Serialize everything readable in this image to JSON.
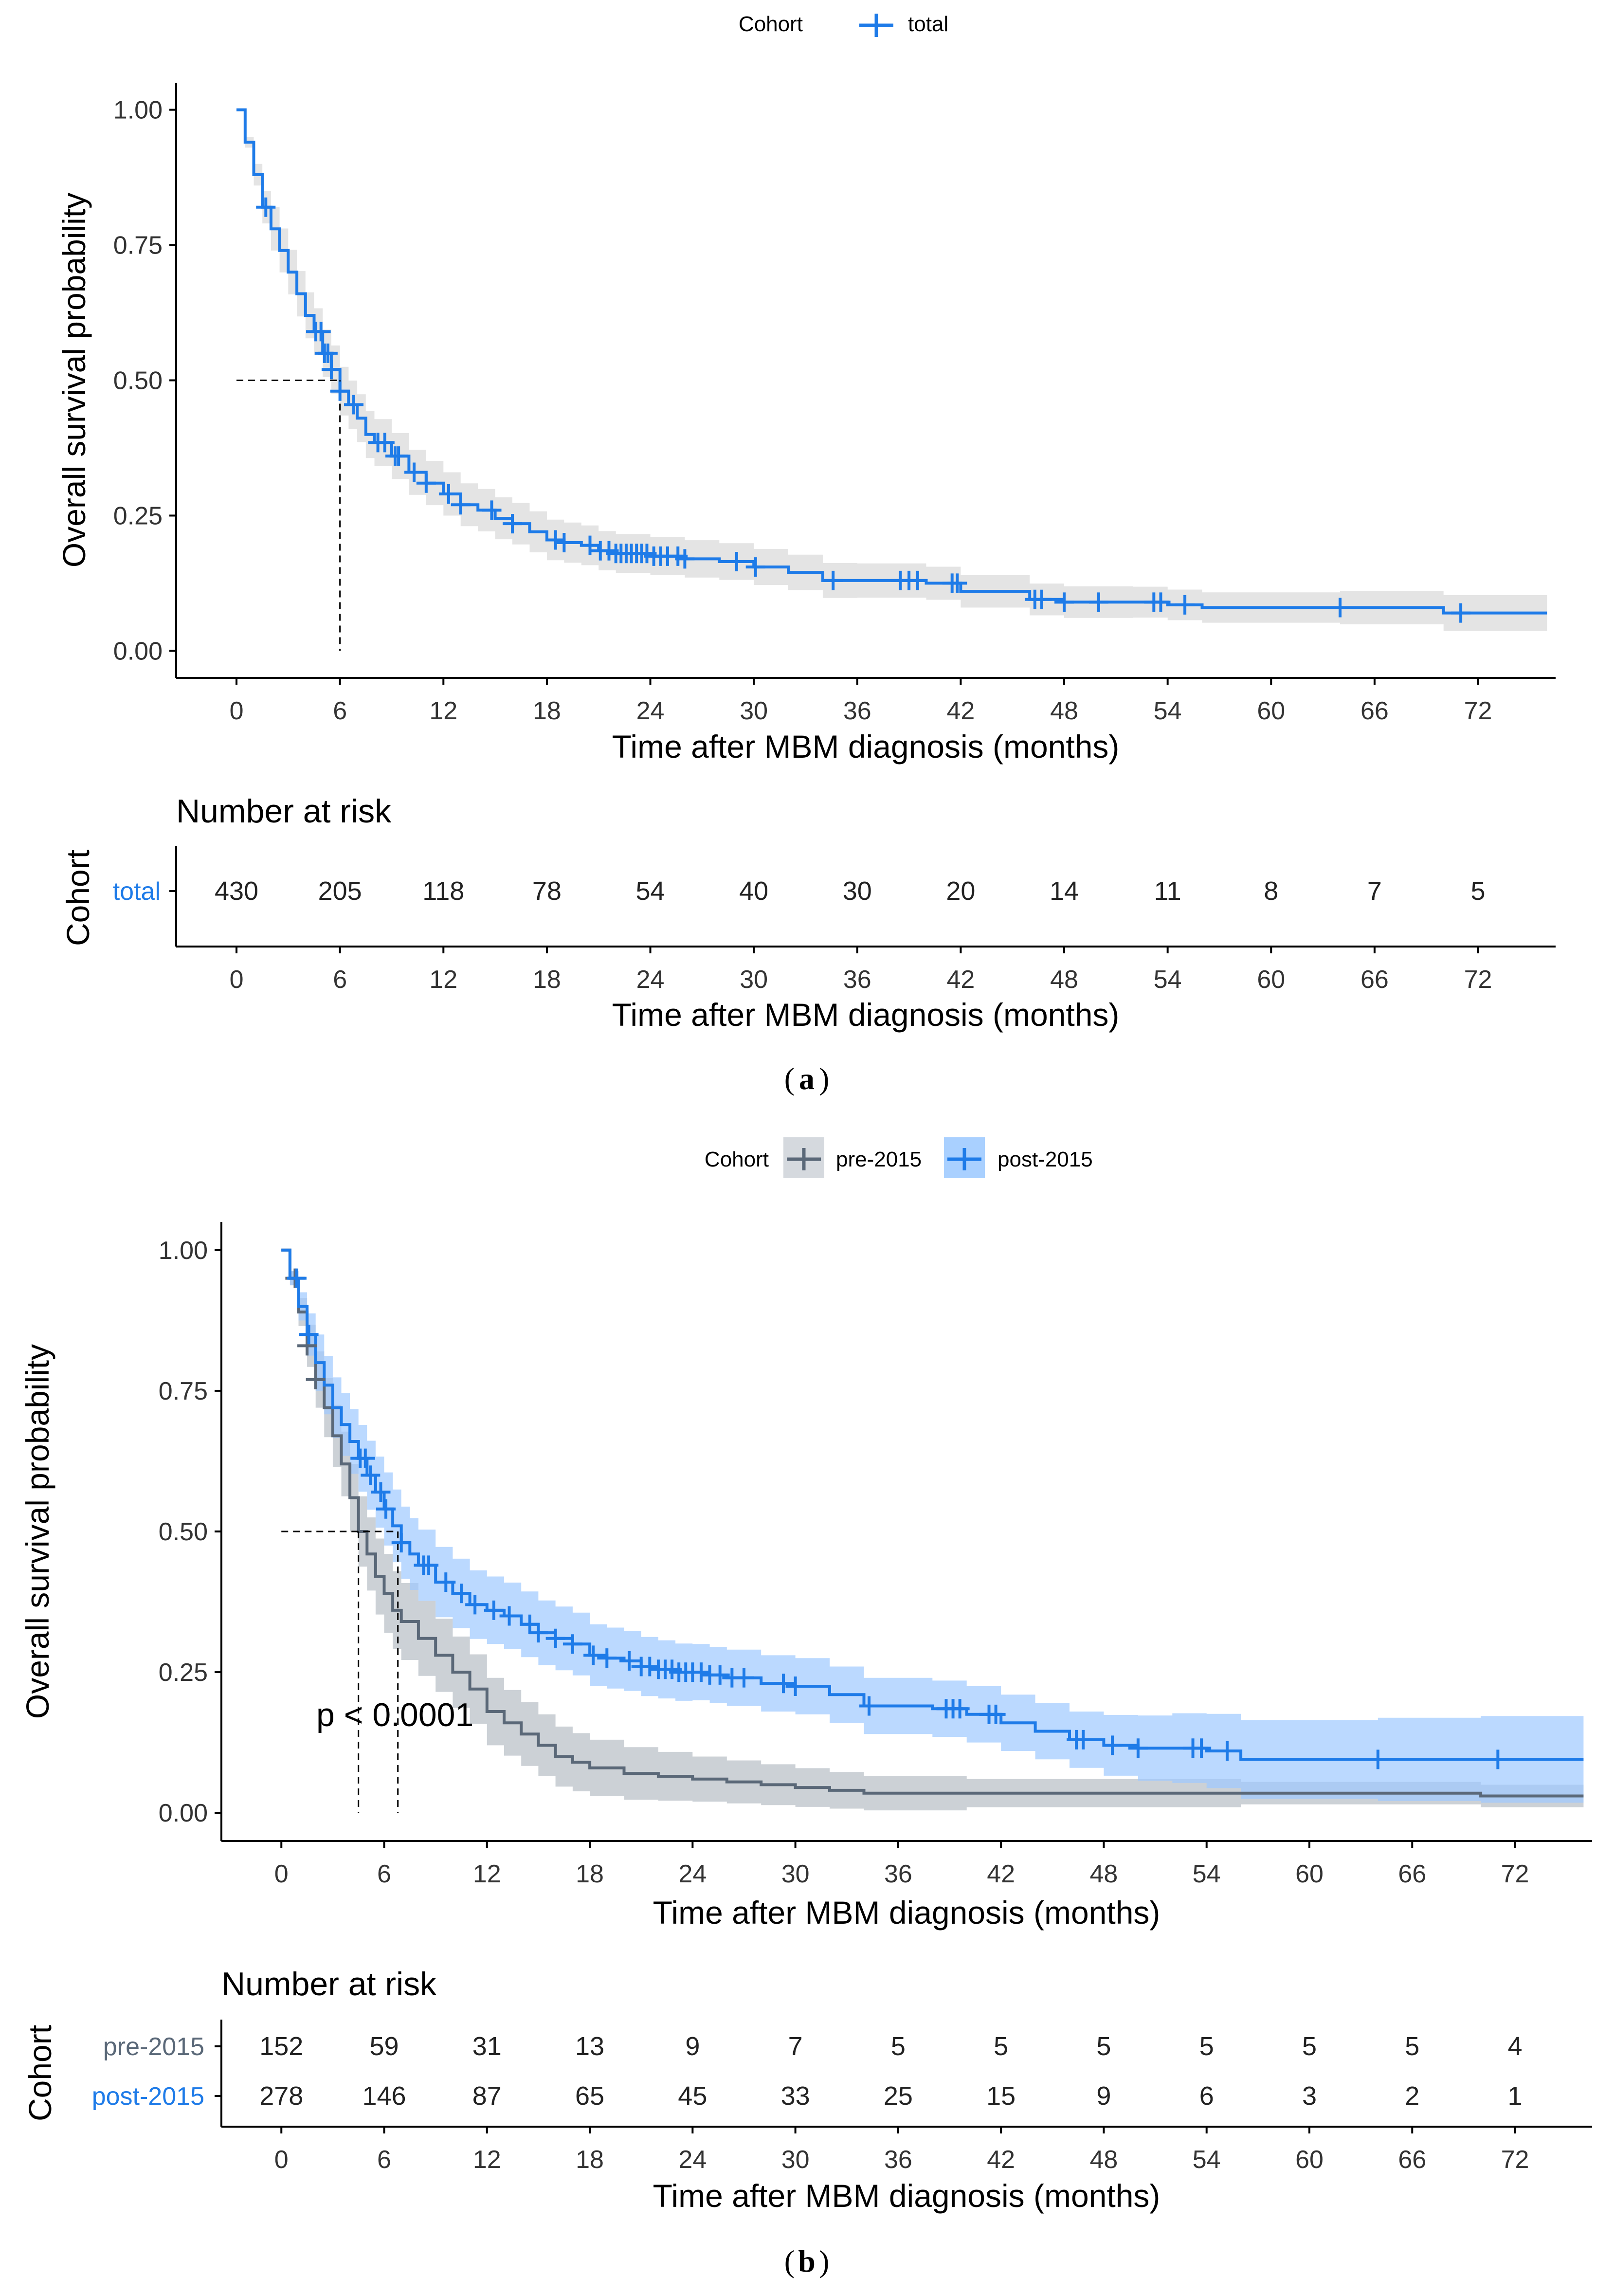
{
  "chart_data": [
    {
      "type": "line",
      "panel_label": "a",
      "legend": {
        "title": "Cohort",
        "entries": [
          "total"
        ],
        "placement": "top-center"
      },
      "xlabel": "Time after MBM diagnosis (months)",
      "ylabel": "Overall survival probability",
      "x_ticks": [
        0,
        6,
        12,
        18,
        24,
        30,
        36,
        42,
        48,
        54,
        60,
        66,
        72
      ],
      "y_ticks": [
        "0.00",
        "0.25",
        "0.50",
        "0.75",
        "1.00"
      ],
      "xlim": [
        -3.5,
        76.5
      ],
      "ylim": [
        -0.05,
        1.05
      ],
      "median_survival": 6,
      "series": [
        {
          "name": "total",
          "color": "#1e7be8",
          "band_color": "#e4e4e4",
          "band_opacity": 1,
          "curve": [
            [
              0,
              1.0
            ],
            [
              0.5,
              0.94
            ],
            [
              1,
              0.88
            ],
            [
              1.5,
              0.82
            ],
            [
              2,
              0.78
            ],
            [
              2.5,
              0.74
            ],
            [
              3,
              0.7
            ],
            [
              3.5,
              0.66
            ],
            [
              4,
              0.62
            ],
            [
              4.5,
              0.59
            ],
            [
              5,
              0.55
            ],
            [
              5.5,
              0.52
            ],
            [
              6,
              0.48
            ],
            [
              6.5,
              0.455
            ],
            [
              7,
              0.43
            ],
            [
              7.5,
              0.4
            ],
            [
              8,
              0.385
            ],
            [
              9,
              0.36
            ],
            [
              10,
              0.33
            ],
            [
              11,
              0.31
            ],
            [
              12,
              0.29
            ],
            [
              13,
              0.27
            ],
            [
              14,
              0.26
            ],
            [
              15,
              0.245
            ],
            [
              16,
              0.235
            ],
            [
              17,
              0.22
            ],
            [
              18,
              0.205
            ],
            [
              19,
              0.2
            ],
            [
              20,
              0.195
            ],
            [
              21,
              0.185
            ],
            [
              22,
              0.18
            ],
            [
              24,
              0.175
            ],
            [
              26,
              0.17
            ],
            [
              28,
              0.165
            ],
            [
              30,
              0.155
            ],
            [
              32,
              0.145
            ],
            [
              34,
              0.13
            ],
            [
              36,
              0.13
            ],
            [
              40,
              0.125
            ],
            [
              42,
              0.11
            ],
            [
              46,
              0.095
            ],
            [
              48,
              0.09
            ],
            [
              52,
              0.09
            ],
            [
              54,
              0.085
            ],
            [
              56,
              0.08
            ],
            [
              64,
              0.08
            ],
            [
              70,
              0.07
            ],
            [
              76,
              0.07
            ]
          ],
          "ci_width": [
            [
              0,
              0.0
            ],
            [
              2,
              0.04
            ],
            [
              6,
              0.045
            ],
            [
              12,
              0.04
            ],
            [
              24,
              0.035
            ],
            [
              42,
              0.03
            ],
            [
              56,
              0.028
            ],
            [
              76,
              0.035
            ]
          ],
          "censors": [
            1.7,
            4.6,
            4.9,
            5.1,
            5.3,
            5.5,
            6.0,
            6.8,
            8.2,
            8.6,
            9.2,
            9.4,
            10.3,
            11.0,
            12.3,
            13.0,
            14.8,
            16.0,
            18.5,
            19.0,
            20.5,
            21.1,
            21.6,
            22.0,
            22.3,
            22.6,
            22.9,
            23.2,
            23.5,
            23.8,
            24.2,
            24.6,
            25.0,
            25.6,
            26.0,
            29.0,
            30.1,
            34.6,
            38.5,
            39.0,
            39.5,
            41.5,
            41.8,
            46.3,
            46.7,
            48.0,
            50.0,
            53.2,
            53.6,
            55.0,
            64.0,
            71.0
          ]
        }
      ],
      "risk_table": {
        "title": "Number at risk",
        "ylabel": "Cohort",
        "rows": [
          {
            "name": "total",
            "color": "#1e7be8",
            "values": [
              430,
              205,
              118,
              78,
              54,
              40,
              30,
              20,
              14,
              11,
              8,
              7,
              5
            ]
          }
        ],
        "xlabel": "Time after MBM diagnosis (months)"
      }
    },
    {
      "type": "line",
      "panel_label": "b",
      "legend": {
        "title": "Cohort",
        "entries": [
          "pre-2015",
          "post-2015"
        ],
        "placement": "top-center"
      },
      "xlabel": "Time after MBM diagnosis (months)",
      "ylabel": "Overall survival probability",
      "x_ticks": [
        0,
        6,
        12,
        18,
        24,
        30,
        36,
        42,
        48,
        54,
        60,
        66,
        72
      ],
      "y_ticks": [
        "0.00",
        "0.25",
        "0.50",
        "0.75",
        "1.00"
      ],
      "xlim": [
        -3.5,
        76.5
      ],
      "ylim": [
        -0.05,
        1.05
      ],
      "annotation": "p < 0.0001",
      "median_survival": [
        4.5,
        6.8
      ],
      "series": [
        {
          "name": "pre-2015",
          "color": "#5a6878",
          "band_color": "#9aa3ad",
          "band_opacity": 0.5,
          "curve": [
            [
              0,
              1.0
            ],
            [
              0.5,
              0.95
            ],
            [
              1,
              0.89
            ],
            [
              1.5,
              0.83
            ],
            [
              2,
              0.77
            ],
            [
              2.5,
              0.72
            ],
            [
              3,
              0.67
            ],
            [
              3.5,
              0.62
            ],
            [
              4,
              0.56
            ],
            [
              4.5,
              0.5
            ],
            [
              5,
              0.46
            ],
            [
              5.5,
              0.42
            ],
            [
              6,
              0.39
            ],
            [
              6.5,
              0.36
            ],
            [
              7,
              0.34
            ],
            [
              8,
              0.31
            ],
            [
              9,
              0.28
            ],
            [
              10,
              0.25
            ],
            [
              11,
              0.22
            ],
            [
              12,
              0.18
            ],
            [
              13,
              0.16
            ],
            [
              14,
              0.14
            ],
            [
              15,
              0.12
            ],
            [
              16,
              0.1
            ],
            [
              17,
              0.09
            ],
            [
              18,
              0.08
            ],
            [
              20,
              0.07
            ],
            [
              22,
              0.065
            ],
            [
              24,
              0.06
            ],
            [
              26,
              0.055
            ],
            [
              28,
              0.05
            ],
            [
              30,
              0.045
            ],
            [
              32,
              0.04
            ],
            [
              34,
              0.035
            ],
            [
              40,
              0.035
            ],
            [
              56,
              0.035
            ],
            [
              70,
              0.03
            ],
            [
              76,
              0.03
            ]
          ],
          "ci_width": [
            [
              0,
              0.0
            ],
            [
              2,
              0.05
            ],
            [
              6,
              0.07
            ],
            [
              12,
              0.06
            ],
            [
              24,
              0.04
            ],
            [
              40,
              0.025
            ],
            [
              54,
              0.025
            ],
            [
              56,
              0.02
            ],
            [
              76,
              0.02
            ]
          ],
          "censors": [
            0.8,
            1.5,
            2.0
          ]
        },
        {
          "name": "post-2015",
          "color": "#1e7be8",
          "band_color": "#9ec9ff",
          "band_opacity": 0.7,
          "curve": [
            [
              0,
              1.0
            ],
            [
              0.5,
              0.95
            ],
            [
              1,
              0.9
            ],
            [
              1.5,
              0.85
            ],
            [
              2,
              0.8
            ],
            [
              2.5,
              0.76
            ],
            [
              3,
              0.72
            ],
            [
              3.5,
              0.69
            ],
            [
              4,
              0.66
            ],
            [
              4.5,
              0.63
            ],
            [
              5,
              0.6
            ],
            [
              5.5,
              0.57
            ],
            [
              6,
              0.54
            ],
            [
              6.5,
              0.51
            ],
            [
              7,
              0.48
            ],
            [
              7.5,
              0.46
            ],
            [
              8,
              0.44
            ],
            [
              9,
              0.41
            ],
            [
              10,
              0.39
            ],
            [
              11,
              0.37
            ],
            [
              12,
              0.36
            ],
            [
              13,
              0.35
            ],
            [
              14,
              0.335
            ],
            [
              15,
              0.32
            ],
            [
              16,
              0.31
            ],
            [
              17,
              0.3
            ],
            [
              18,
              0.28
            ],
            [
              19,
              0.275
            ],
            [
              20,
              0.27
            ],
            [
              21,
              0.26
            ],
            [
              22,
              0.255
            ],
            [
              23,
              0.25
            ],
            [
              24,
              0.25
            ],
            [
              25,
              0.245
            ],
            [
              26,
              0.24
            ],
            [
              28,
              0.23
            ],
            [
              30,
              0.225
            ],
            [
              32,
              0.21
            ],
            [
              34,
              0.19
            ],
            [
              36,
              0.19
            ],
            [
              38,
              0.185
            ],
            [
              40,
              0.175
            ],
            [
              42,
              0.16
            ],
            [
              44,
              0.145
            ],
            [
              46,
              0.13
            ],
            [
              48,
              0.12
            ],
            [
              50,
              0.115
            ],
            [
              52,
              0.115
            ],
            [
              54,
              0.11
            ],
            [
              56,
              0.095
            ],
            [
              64,
              0.095
            ],
            [
              70,
              0.095
            ],
            [
              76,
              0.095
            ]
          ],
          "ci_width": [
            [
              0,
              0.0
            ],
            [
              2,
              0.05
            ],
            [
              6,
              0.065
            ],
            [
              12,
              0.06
            ],
            [
              24,
              0.05
            ],
            [
              36,
              0.05
            ],
            [
              46,
              0.05
            ],
            [
              56,
              0.07
            ],
            [
              76,
              0.08
            ]
          ],
          "censors": [
            0.9,
            1.6,
            4.6,
            4.9,
            5.2,
            5.8,
            6.1,
            7.0,
            8.3,
            8.6,
            9.6,
            10.5,
            11.3,
            12.4,
            13.3,
            14.5,
            15.0,
            16.0,
            17.0,
            18.2,
            19.0,
            20.3,
            21.0,
            21.5,
            22.0,
            22.4,
            22.8,
            23.2,
            23.6,
            24.0,
            24.5,
            25.0,
            25.6,
            26.3,
            27.0,
            29.3,
            30.0,
            34.3,
            38.8,
            39.2,
            39.6,
            41.3,
            41.7,
            46.4,
            46.8,
            48.5,
            50.0,
            53.2,
            53.7,
            55.2,
            64.0,
            71.0
          ]
        }
      ],
      "risk_table": {
        "title": "Number at risk",
        "ylabel": "Cohort",
        "rows": [
          {
            "name": "pre-2015",
            "color": "#5a6878",
            "values": [
              152,
              59,
              31,
              13,
              9,
              7,
              5,
              5,
              5,
              5,
              5,
              5,
              4
            ]
          },
          {
            "name": "post-2015",
            "color": "#1e7be8",
            "values": [
              278,
              146,
              87,
              65,
              45,
              33,
              25,
              15,
              9,
              6,
              3,
              2,
              1
            ]
          }
        ],
        "xlabel": "Time after MBM diagnosis (months)"
      }
    }
  ]
}
